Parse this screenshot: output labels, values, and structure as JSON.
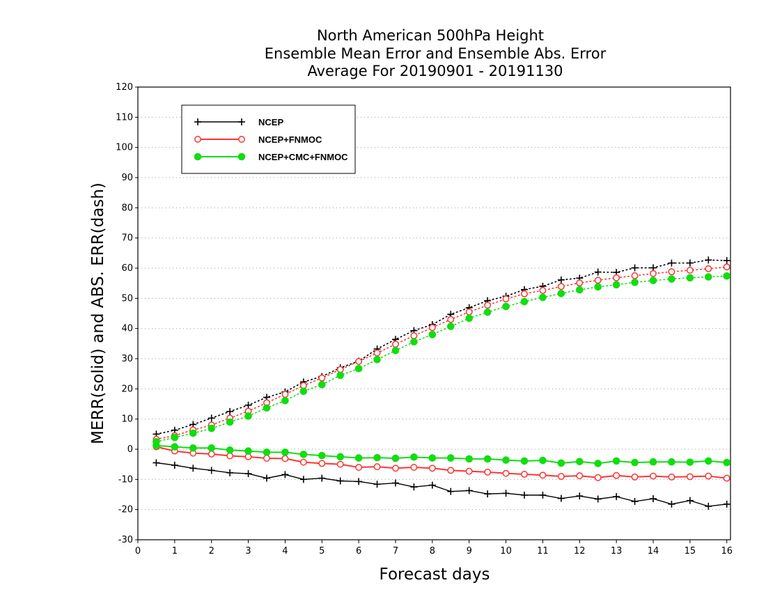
{
  "chart_data": {
    "type": "line",
    "title_lines": [
      "North American 500hPa Height",
      "Ensemble Mean Error and Ensemble Abs. Error",
      "Average For 20190901 - 20191130"
    ],
    "xlabel": "Forecast days",
    "ylabel": "MERR(solid) and ABS. ERR(dash)",
    "xlim": [
      0,
      16.1
    ],
    "ylim": [
      -30,
      120
    ],
    "x_ticks": [
      "0",
      "1",
      "2",
      "3",
      "4",
      "5",
      "6",
      "7",
      "8",
      "9",
      "10",
      "11",
      "12",
      "13",
      "14",
      "15",
      "16"
    ],
    "y_ticks": [
      "-30",
      "-20",
      "-10",
      "0",
      "10",
      "20",
      "30",
      "40",
      "50",
      "60",
      "70",
      "80",
      "90",
      "100",
      "110",
      "120"
    ],
    "grid": true,
    "legend_position": "top-left",
    "x": [
      0.5,
      1,
      1.5,
      2,
      2.5,
      3,
      3.5,
      4,
      4.5,
      5,
      5.5,
      6,
      6.5,
      7,
      7.5,
      8,
      8.5,
      9,
      9.5,
      10,
      10.5,
      11,
      11.5,
      12,
      12.5,
      13,
      13.5,
      14,
      14.5,
      15,
      15.5,
      16
    ],
    "series": [
      {
        "name": "NCEP",
        "color": "#000000",
        "marker": "plus",
        "mean_error": [
          -4.5,
          -5.3,
          -6.3,
          -7.0,
          -7.8,
          -8.1,
          -9.6,
          -8.4,
          -10.0,
          -9.6,
          -10.5,
          -10.7,
          -11.6,
          -11.2,
          -12.5,
          -11.9,
          -14.0,
          -13.7,
          -14.8,
          -14.6,
          -15.2,
          -15.2,
          -16.3,
          -15.5,
          -16.5,
          -15.7,
          -17.3,
          -16.4,
          -18.2,
          -17.0,
          -18.9,
          -18.2
        ],
        "abs_error": [
          5.0,
          6.3,
          8.2,
          10.3,
          12.5,
          14.6,
          17.2,
          19.0,
          22.3,
          24.1,
          27.0,
          29.2,
          33.2,
          36.4,
          39.3,
          41.3,
          44.7,
          46.9,
          49.2,
          50.7,
          52.9,
          54.0,
          56.1,
          56.7,
          58.7,
          58.6,
          60.1,
          60.1,
          61.7,
          61.7,
          62.7,
          62.5
        ]
      },
      {
        "name": "NCEP+FNMOC",
        "color": "#ff3333",
        "marker": "open-circle",
        "mean_error": [
          0.8,
          -0.6,
          -1.3,
          -1.6,
          -2.2,
          -2.5,
          -3.0,
          -3.1,
          -4.3,
          -4.7,
          -5.0,
          -6.0,
          -5.8,
          -6.3,
          -6.0,
          -6.3,
          -7.0,
          -7.3,
          -7.6,
          -8.0,
          -8.3,
          -8.6,
          -9.0,
          -8.8,
          -9.4,
          -8.7,
          -9.2,
          -8.9,
          -9.2,
          -9.1,
          -8.9,
          -9.6
        ],
        "abs_error": [
          3.3,
          4.5,
          6.4,
          8.0,
          10.3,
          12.6,
          15.4,
          18.2,
          21.1,
          23.6,
          26.4,
          29.1,
          31.9,
          34.8,
          37.6,
          40.3,
          43.0,
          45.5,
          47.7,
          49.8,
          51.5,
          52.6,
          53.9,
          55.1,
          56.0,
          56.8,
          57.5,
          58.2,
          58.8,
          59.3,
          59.8,
          60.4
        ]
      },
      {
        "name": "NCEP+CMC+FNMOC",
        "color": "#11dd11",
        "marker": "filled-circle",
        "mean_error": [
          1.2,
          0.8,
          0.4,
          0.4,
          -0.3,
          -0.6,
          -1.0,
          -1.0,
          -1.7,
          -2.1,
          -2.5,
          -2.9,
          -2.8,
          -3.0,
          -2.6,
          -2.9,
          -2.9,
          -3.2,
          -3.2,
          -3.6,
          -3.9,
          -3.7,
          -4.6,
          -4.1,
          -4.7,
          -3.9,
          -4.4,
          -4.2,
          -4.2,
          -4.3,
          -3.9,
          -4.4
        ],
        "abs_error": [
          2.5,
          3.9,
          5.3,
          6.9,
          9.0,
          11.0,
          13.7,
          16.1,
          19.2,
          21.4,
          24.5,
          26.7,
          29.7,
          32.7,
          35.6,
          38.0,
          40.7,
          43.4,
          45.4,
          47.3,
          48.9,
          50.3,
          51.6,
          52.8,
          53.8,
          54.5,
          55.3,
          55.9,
          56.4,
          56.8,
          57.1,
          57.4
        ]
      }
    ]
  }
}
